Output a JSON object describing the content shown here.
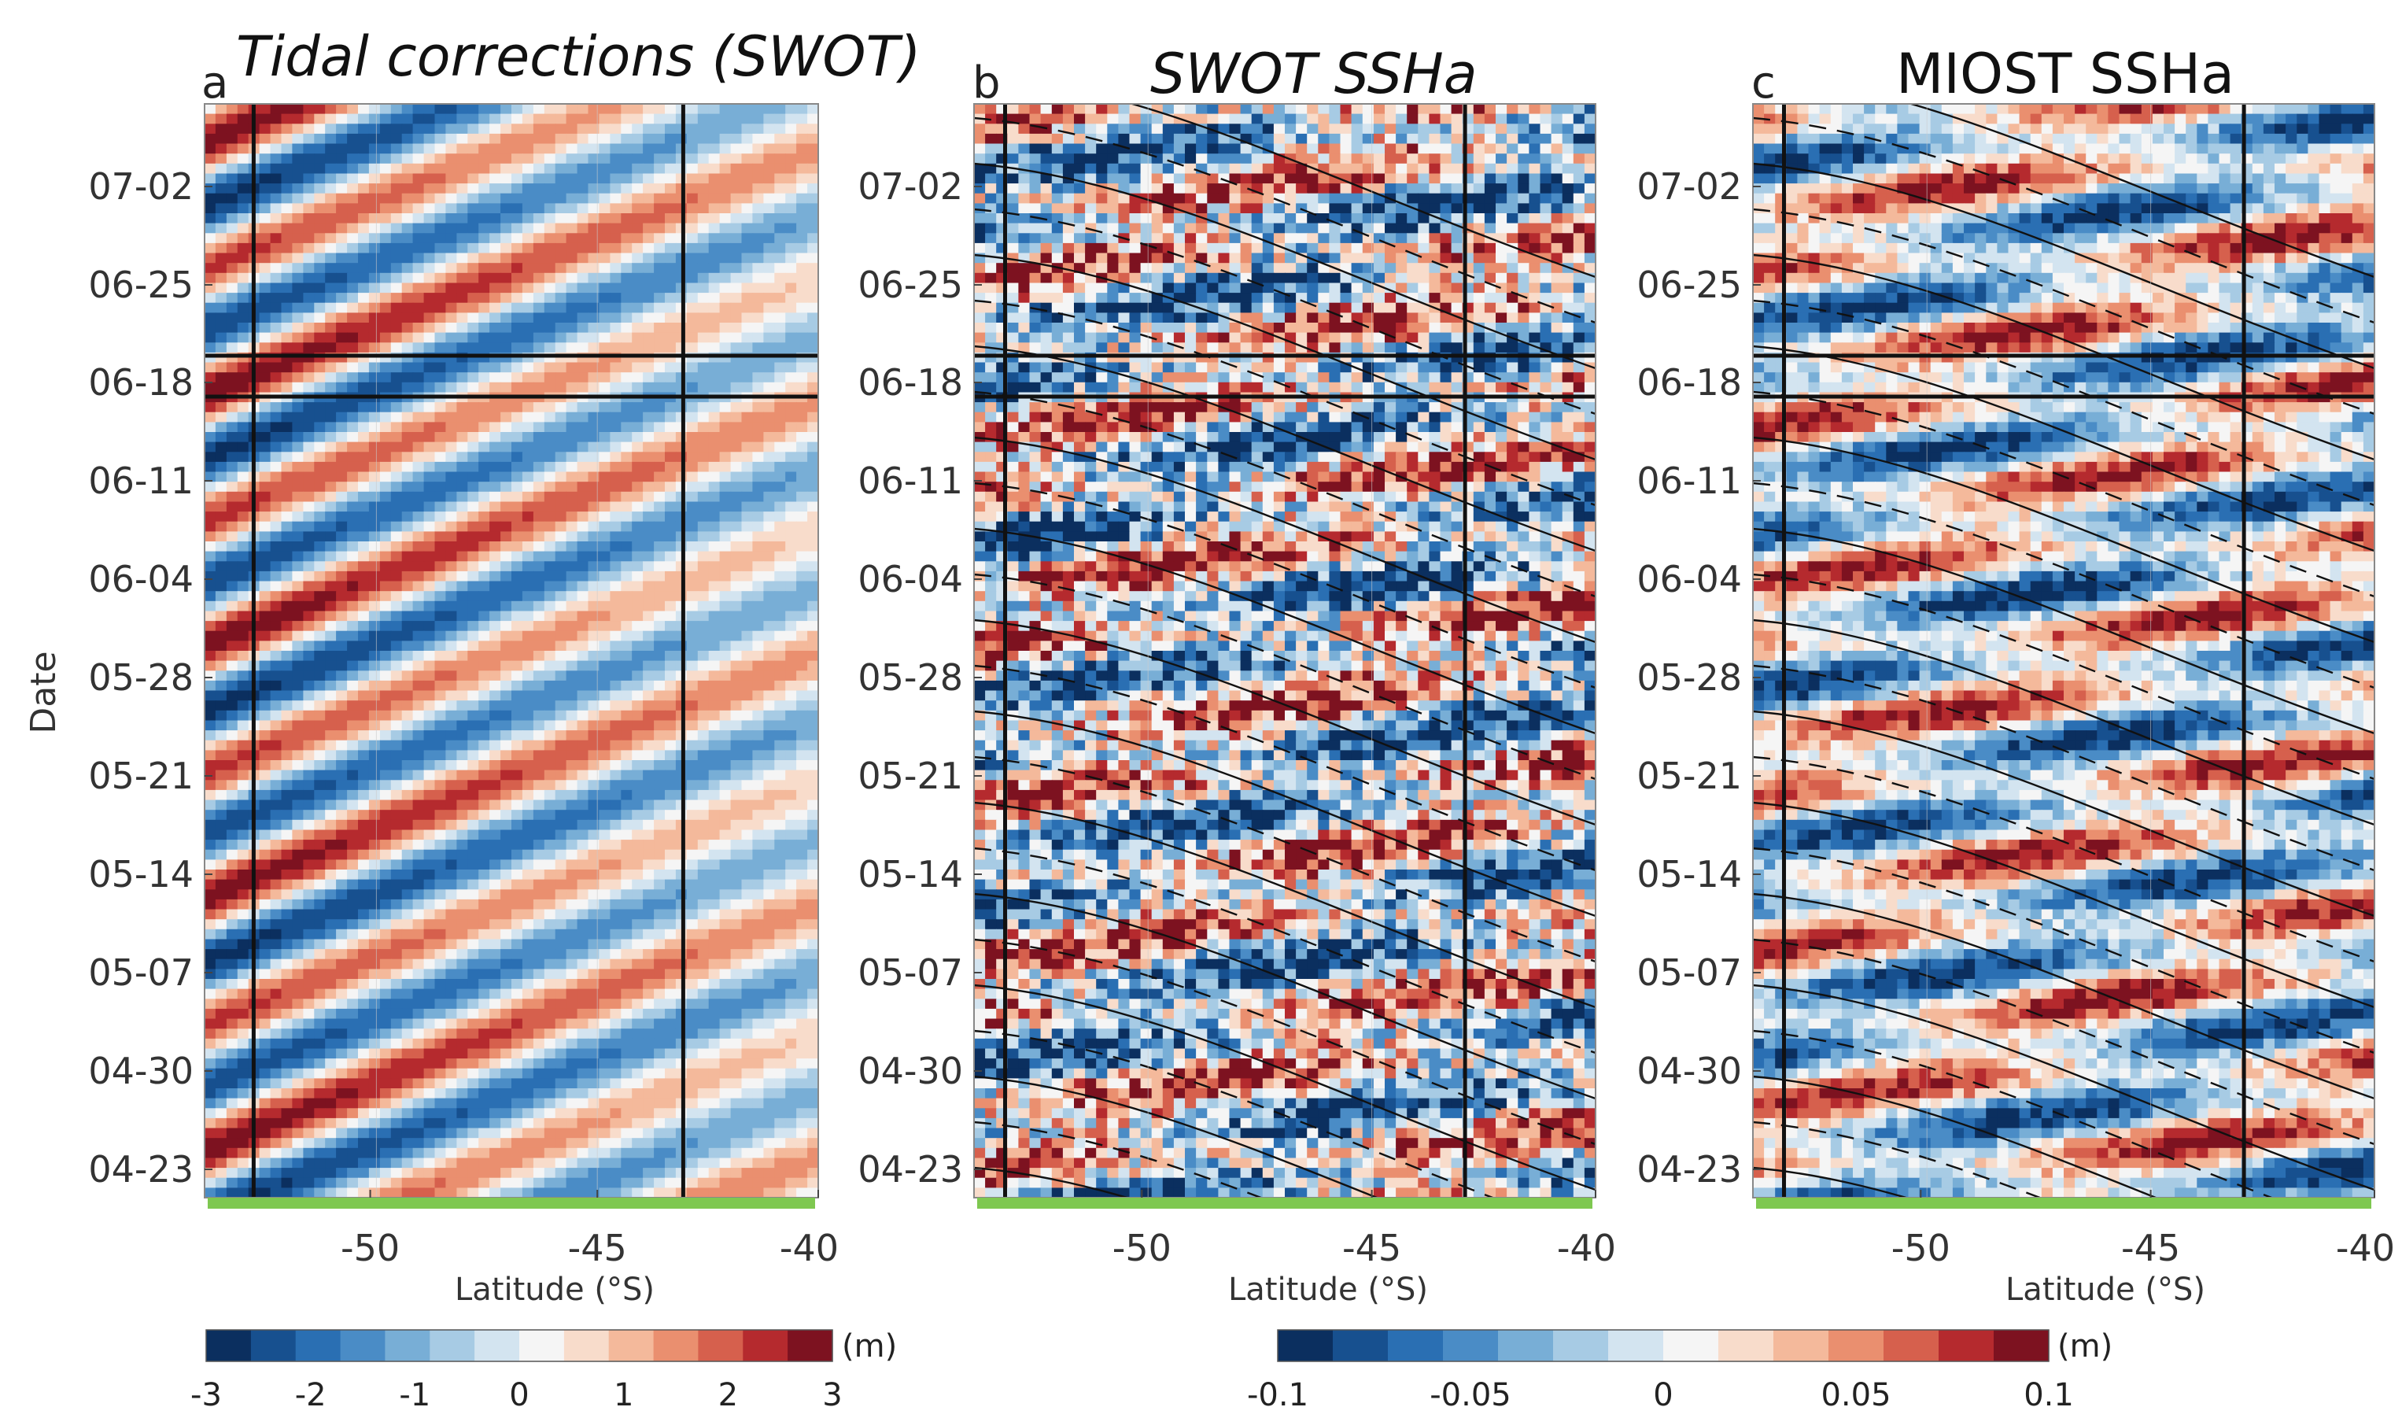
{
  "chart_data": [
    {
      "panel": "a",
      "type": "heatmap",
      "title": "Tidal corrections (SWOT)",
      "ylabel": "Date",
      "xlabel": "Latitude (°S)",
      "x_ticks": [
        "-50",
        "-45",
        "-40"
      ],
      "xlim": [
        -52.6,
        -40
      ],
      "y_ticks": [
        "07-02",
        "06-25",
        "06-18",
        "06-11",
        "06-04",
        "05-28",
        "05-21",
        "05-14",
        "05-07",
        "04-30",
        "04-23"
      ],
      "colorbar": {
        "ticks": [
          "-3",
          "-2",
          "-1",
          "0",
          "1",
          "2",
          "3"
        ],
        "range": [
          -3,
          3
        ],
        "unit": "(m)"
      },
      "vertical_lines_lat": [
        -52.2,
        -43.1
      ],
      "horizontal_lines_date": [
        "06-21",
        "06-18"
      ]
    },
    {
      "panel": "b",
      "type": "heatmap",
      "title": "SWOT SSHa",
      "xlabel": "Latitude (°S)",
      "x_ticks": [
        "-50",
        "-45",
        "-40"
      ],
      "xlim": [
        -53,
        -40
      ],
      "y_ticks": [
        "07-02",
        "06-25",
        "06-18",
        "06-11",
        "06-04",
        "05-28",
        "05-21",
        "05-14",
        "05-07",
        "04-30",
        "04-23"
      ],
      "colorbar": {
        "ticks": [
          "-0.1",
          "-0.05",
          "0",
          "0.05",
          "0.1"
        ],
        "range": [
          -0.1,
          0.1
        ],
        "unit": "(m)"
      },
      "vertical_lines_lat": [
        -52.6,
        -43.2
      ],
      "horizontal_lines_date": [
        "06-21",
        "06-18"
      ],
      "contours": "tidal corrections (solid positive, dashed negative)"
    },
    {
      "panel": "c",
      "type": "heatmap",
      "title": "MIOST SSHa",
      "xlabel": "Latitude (°S)",
      "x_ticks": [
        "-50",
        "-45",
        "-40"
      ],
      "xlim": [
        -53,
        -40
      ],
      "y_ticks": [
        "07-02",
        "06-25",
        "06-18",
        "06-11",
        "06-04",
        "05-28",
        "05-21",
        "05-14",
        "05-07",
        "04-30",
        "04-23"
      ],
      "vertical_lines_lat": [
        -52.6,
        -43.3
      ],
      "horizontal_lines_date": [
        "06-21",
        "06-18"
      ],
      "contours": "tidal corrections (solid positive, dashed negative)"
    }
  ],
  "colors": {
    "palette": [
      "#0b2f5f",
      "#17508f",
      "#2a6fb3",
      "#4a8cc6",
      "#78aed6",
      "#a7cbe4",
      "#d3e4f0",
      "#f5f5f5",
      "#f8dccb",
      "#f4b99b",
      "#ea8f6f",
      "#d6604d",
      "#b52a2e",
      "#7d1220"
    ],
    "green_bar": "#7ec850",
    "lines": "#111111"
  }
}
